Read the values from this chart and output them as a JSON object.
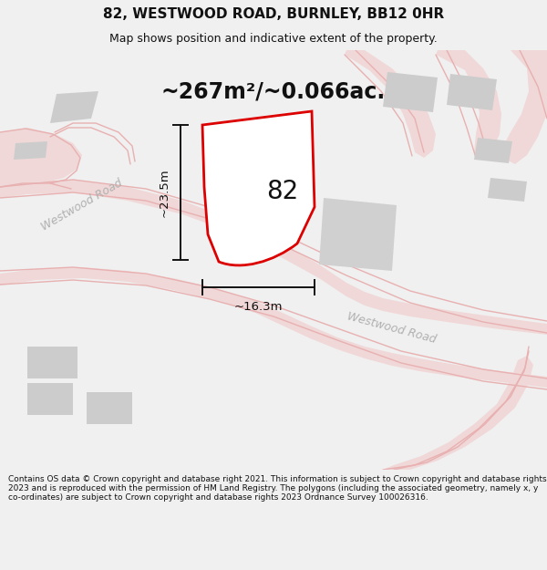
{
  "title": "82, WESTWOOD ROAD, BURNLEY, BB12 0HR",
  "subtitle": "Map shows position and indicative extent of the property.",
  "area_label": "~267m²/~0.066ac.",
  "number_label": "82",
  "dim_vertical": "~23.5m",
  "dim_horizontal": "~16.3m",
  "road_label_left": "Westwood Road",
  "road_label_right": "Westwood Road",
  "footer": "Contains OS data © Crown copyright and database right 2021. This information is subject to Crown copyright and database rights 2023 and is reproduced with the permission of HM Land Registry. The polygons (including the associated geometry, namely x, y co-ordinates) are subject to Crown copyright and database rights 2023 Ordnance Survey 100026316.",
  "bg_color": "#f0f0f0",
  "map_bg": "#f8f8f8",
  "plot_fill": "#ffffff",
  "plot_stroke": "#dd0000",
  "road_fill": "#f0d8d8",
  "road_line": "#e8b0b0",
  "building_color": "#cccccc",
  "building_dark": "#bbbbbb",
  "dim_color": "#111111",
  "text_color": "#111111",
  "road_text_color": "#b0b0b0",
  "title_fontsize": 11,
  "subtitle_fontsize": 9,
  "area_fontsize": 17,
  "number_fontsize": 20,
  "dim_fontsize": 9.5,
  "road_fontsize": 9,
  "footer_fontsize": 6.5,
  "plot_linewidth": 2.0,
  "dim_linewidth": 1.4
}
